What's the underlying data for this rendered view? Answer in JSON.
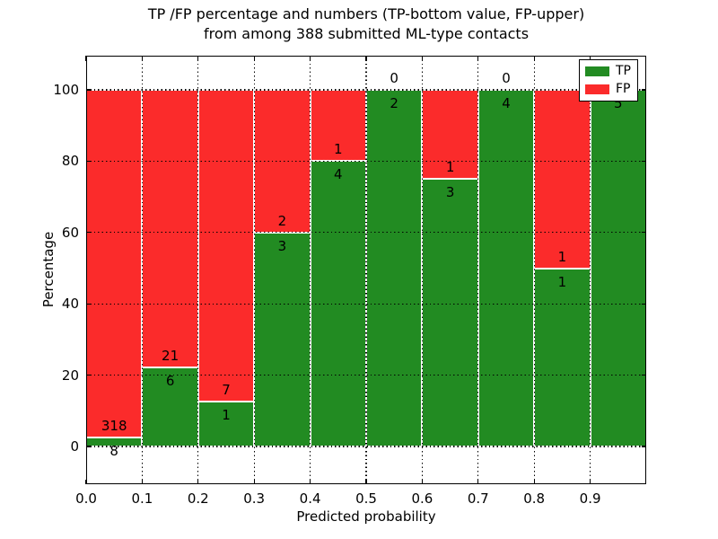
{
  "title": {
    "line1": "TP /FP percentage and numbers (TP-bottom value, FP-upper)",
    "line2": "from among 388 submitted ML-type contacts"
  },
  "axes": {
    "xlabel": "Predicted probability",
    "ylabel": "Percentage",
    "xticks": [
      "0.0",
      "0.1",
      "0.2",
      "0.3",
      "0.4",
      "0.5",
      "0.6",
      "0.7",
      "0.8",
      "0.9"
    ],
    "yticks": [
      "0",
      "20",
      "40",
      "60",
      "80",
      "100"
    ]
  },
  "legend": {
    "entries": [
      {
        "label": "TP",
        "color": "#228B22"
      },
      {
        "label": "FP",
        "color": "#FB2B2B"
      }
    ]
  },
  "colors": {
    "tp": "#228B22",
    "fp": "#FB2B2B",
    "bar_edge": "#ffffff",
    "grid": "#000000",
    "background": "#ffffff"
  },
  "chart_data": {
    "type": "bar",
    "stacked": true,
    "title": "TP /FP percentage and numbers (TP-bottom value, FP-upper) from among 388 submitted ML-type contacts",
    "xlabel": "Predicted probability",
    "ylabel": "Percentage",
    "xlim": [
      0.0,
      1.0
    ],
    "ylim": [
      -10.5,
      109.5
    ],
    "grid": "dotted",
    "legend_position": "upper right",
    "total_contacts": 388,
    "bin_width": 0.1,
    "bin_starts": [
      0.0,
      0.1,
      0.2,
      0.3,
      0.4,
      0.5,
      0.6,
      0.7,
      0.8,
      0.9
    ],
    "series": [
      {
        "name": "TP",
        "counts": [
          8,
          6,
          1,
          3,
          4,
          2,
          3,
          4,
          1,
          5
        ],
        "pct": [
          2.45,
          22.22,
          12.5,
          60,
          80,
          100,
          75,
          100,
          50,
          100
        ]
      },
      {
        "name": "FP",
        "counts": [
          318,
          21,
          7,
          2,
          1,
          0,
          1,
          0,
          1,
          0
        ],
        "pct": [
          97.55,
          77.78,
          87.5,
          40,
          20,
          0,
          25,
          0,
          50,
          0
        ]
      }
    ]
  }
}
